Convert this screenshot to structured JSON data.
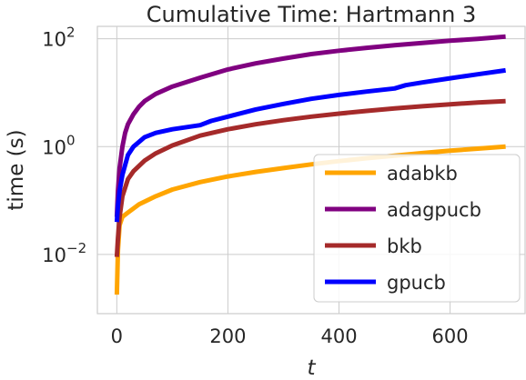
{
  "chart_data": {
    "type": "line",
    "title": "Cumulative Time: Hartmann 3",
    "xlabel": "t",
    "ylabel": "time (s)",
    "xlim": [
      -35,
      735
    ],
    "ylim": [
      0.0008,
      170
    ],
    "yscale": "log",
    "grid": true,
    "legend_position": "lower-right",
    "x_ticks": [
      0,
      200,
      400,
      600
    ],
    "x_tick_labels": [
      "0",
      "200",
      "400",
      "600"
    ],
    "y_ticks": [
      0.01,
      1,
      100
    ],
    "y_tick_labels": [
      "10",
      "10",
      "10"
    ],
    "y_tick_exponents": [
      "−2",
      "0",
      "2"
    ],
    "series": [
      {
        "name": "adabkb",
        "color": "#FFA500",
        "x": [
          0,
          2,
          5,
          10,
          20,
          40,
          70,
          100,
          150,
          200,
          250,
          300,
          350,
          400,
          450,
          500,
          550,
          600,
          650,
          700
        ],
        "y": [
          0.0018,
          0.012,
          0.035,
          0.05,
          0.06,
          0.085,
          0.12,
          0.16,
          0.22,
          0.28,
          0.34,
          0.4,
          0.47,
          0.54,
          0.61,
          0.68,
          0.76,
          0.84,
          0.92,
          1.0
        ]
      },
      {
        "name": "adagpucb",
        "color": "#800080",
        "x": [
          0,
          2,
          5,
          10,
          15,
          20,
          30,
          40,
          50,
          70,
          100,
          150,
          200,
          250,
          300,
          350,
          400,
          450,
          500,
          550,
          600,
          650,
          700
        ],
        "y": [
          0.05,
          0.15,
          0.4,
          1.0,
          1.8,
          2.6,
          4.0,
          5.5,
          7.0,
          9.5,
          13,
          19,
          27,
          35,
          43,
          52,
          60,
          68,
          76,
          84,
          92,
          100,
          110
        ]
      },
      {
        "name": "bkb",
        "color": "#A52A2A",
        "x": [
          0,
          2,
          5,
          10,
          20,
          30,
          50,
          70,
          100,
          150,
          200,
          250,
          300,
          350,
          400,
          450,
          500,
          550,
          600,
          650,
          700
        ],
        "y": [
          0.009,
          0.02,
          0.05,
          0.12,
          0.25,
          0.35,
          0.55,
          0.75,
          1.05,
          1.6,
          2.1,
          2.6,
          3.1,
          3.6,
          4.1,
          4.6,
          5.1,
          5.6,
          6.1,
          6.6,
          7.0
        ]
      },
      {
        "name": "gpucb",
        "color": "#0000FF",
        "x": [
          0,
          2,
          5,
          10,
          20,
          30,
          50,
          70,
          100,
          150,
          170,
          200,
          250,
          300,
          350,
          400,
          450,
          500,
          520,
          550,
          600,
          650,
          700
        ],
        "y": [
          0.04,
          0.08,
          0.15,
          0.3,
          0.7,
          1.0,
          1.5,
          1.8,
          2.1,
          2.5,
          3.0,
          3.6,
          4.9,
          6.2,
          7.7,
          9.1,
          10.5,
          12,
          13.8,
          15.5,
          18.5,
          22,
          26
        ]
      }
    ]
  }
}
